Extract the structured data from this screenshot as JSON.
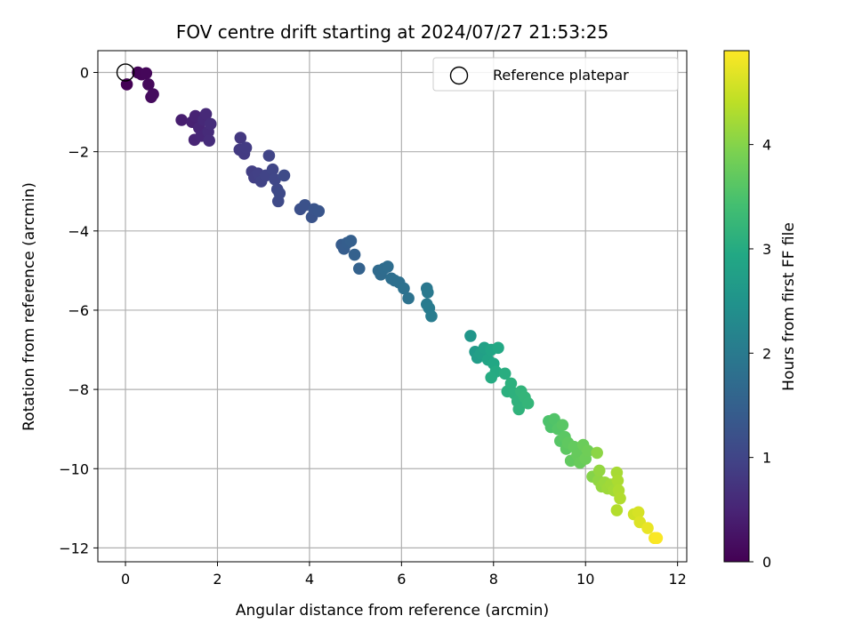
{
  "chart_data": {
    "type": "scatter",
    "title": "FOV centre drift starting at 2024/07/27 21:53:25",
    "xlabel": "Angular distance from reference (arcmin)",
    "ylabel": "Rotation from reference (arcmin)",
    "xlim": [
      -0.6,
      12.2
    ],
    "ylim": [
      -12.35,
      0.55
    ],
    "xticks": [
      0,
      2,
      4,
      6,
      8,
      10,
      12
    ],
    "yticks": [
      0,
      -2,
      -4,
      -6,
      -8,
      -10,
      -12
    ],
    "xtick_labels": [
      "0",
      "2",
      "4",
      "6",
      "8",
      "10",
      "12"
    ],
    "ytick_labels": [
      "0",
      "−2",
      "−4",
      "−6",
      "−8",
      "−10",
      "−12"
    ],
    "grid": true,
    "colormap": "viridis",
    "colorbar": {
      "label": "Hours from first FF file",
      "range": [
        0,
        4.9
      ],
      "ticks": [
        0,
        1,
        2,
        3,
        4
      ],
      "tick_labels": [
        "0",
        "1",
        "2",
        "3",
        "4"
      ]
    },
    "legend": {
      "placement": "top-right",
      "entries": [
        "Reference platepar"
      ]
    },
    "reference_point": {
      "x": 0,
      "y": 0
    },
    "points": [
      {
        "x": 0.03,
        "y": -0.3,
        "t": 0.02
      },
      {
        "x": 0.27,
        "y": 0.0,
        "t": 0.05
      },
      {
        "x": 0.35,
        "y": -0.05,
        "t": 0.07
      },
      {
        "x": 0.45,
        "y": -0.02,
        "t": 0.09
      },
      {
        "x": 0.5,
        "y": -0.3,
        "t": 0.11
      },
      {
        "x": 0.56,
        "y": -0.62,
        "t": 0.13
      },
      {
        "x": 0.6,
        "y": -0.55,
        "t": 0.15
      },
      {
        "x": 1.22,
        "y": -1.2,
        "t": 0.4
      },
      {
        "x": 1.45,
        "y": -1.25,
        "t": 0.45
      },
      {
        "x": 1.52,
        "y": -1.1,
        "t": 0.48
      },
      {
        "x": 1.5,
        "y": -1.7,
        "t": 0.5
      },
      {
        "x": 1.6,
        "y": -1.4,
        "t": 0.52
      },
      {
        "x": 1.65,
        "y": -1.6,
        "t": 0.54
      },
      {
        "x": 1.7,
        "y": -1.2,
        "t": 0.56
      },
      {
        "x": 1.75,
        "y": -1.05,
        "t": 0.58
      },
      {
        "x": 1.8,
        "y": -1.5,
        "t": 0.6
      },
      {
        "x": 1.82,
        "y": -1.72,
        "t": 0.62
      },
      {
        "x": 1.85,
        "y": -1.3,
        "t": 0.63
      },
      {
        "x": 2.5,
        "y": -1.65,
        "t": 0.8
      },
      {
        "x": 2.48,
        "y": -1.95,
        "t": 0.82
      },
      {
        "x": 2.58,
        "y": -2.05,
        "t": 0.84
      },
      {
        "x": 2.62,
        "y": -1.9,
        "t": 0.86
      },
      {
        "x": 2.75,
        "y": -2.5,
        "t": 0.9
      },
      {
        "x": 2.8,
        "y": -2.65,
        "t": 0.92
      },
      {
        "x": 2.88,
        "y": -2.55,
        "t": 0.94
      },
      {
        "x": 2.95,
        "y": -2.75,
        "t": 0.96
      },
      {
        "x": 3.05,
        "y": -2.6,
        "t": 0.98
      },
      {
        "x": 3.12,
        "y": -2.1,
        "t": 1.0
      },
      {
        "x": 3.2,
        "y": -2.45,
        "t": 1.02
      },
      {
        "x": 3.25,
        "y": -2.7,
        "t": 1.04
      },
      {
        "x": 3.3,
        "y": -2.95,
        "t": 1.06
      },
      {
        "x": 3.32,
        "y": -3.25,
        "t": 1.08
      },
      {
        "x": 3.35,
        "y": -3.05,
        "t": 1.09
      },
      {
        "x": 3.45,
        "y": -2.6,
        "t": 1.1
      },
      {
        "x": 3.8,
        "y": -3.45,
        "t": 1.2
      },
      {
        "x": 3.9,
        "y": -3.35,
        "t": 1.22
      },
      {
        "x": 4.05,
        "y": -3.65,
        "t": 1.25
      },
      {
        "x": 4.1,
        "y": -3.45,
        "t": 1.27
      },
      {
        "x": 4.2,
        "y": -3.5,
        "t": 1.29
      },
      {
        "x": 4.7,
        "y": -4.35,
        "t": 1.42
      },
      {
        "x": 4.75,
        "y": -4.45,
        "t": 1.44
      },
      {
        "x": 4.82,
        "y": -4.3,
        "t": 1.46
      },
      {
        "x": 4.9,
        "y": -4.25,
        "t": 1.48
      },
      {
        "x": 4.98,
        "y": -4.6,
        "t": 1.5
      },
      {
        "x": 5.08,
        "y": -4.95,
        "t": 1.53
      },
      {
        "x": 5.5,
        "y": -5.0,
        "t": 1.68
      },
      {
        "x": 5.55,
        "y": -5.1,
        "t": 1.7
      },
      {
        "x": 5.62,
        "y": -4.95,
        "t": 1.72
      },
      {
        "x": 5.7,
        "y": -4.9,
        "t": 1.74
      },
      {
        "x": 5.78,
        "y": -5.2,
        "t": 1.76
      },
      {
        "x": 5.85,
        "y": -5.25,
        "t": 1.78
      },
      {
        "x": 5.95,
        "y": -5.3,
        "t": 1.8
      },
      {
        "x": 6.05,
        "y": -5.45,
        "t": 1.82
      },
      {
        "x": 6.15,
        "y": -5.7,
        "t": 1.84
      },
      {
        "x": 6.55,
        "y": -5.45,
        "t": 1.95
      },
      {
        "x": 6.57,
        "y": -5.55,
        "t": 1.97
      },
      {
        "x": 6.55,
        "y": -5.85,
        "t": 1.99
      },
      {
        "x": 6.6,
        "y": -5.95,
        "t": 2.01
      },
      {
        "x": 6.65,
        "y": -6.15,
        "t": 2.03
      },
      {
        "x": 7.5,
        "y": -6.65,
        "t": 2.55
      },
      {
        "x": 7.6,
        "y": -7.05,
        "t": 2.65
      },
      {
        "x": 7.65,
        "y": -7.2,
        "t": 2.7
      },
      {
        "x": 7.72,
        "y": -7.1,
        "t": 2.75
      },
      {
        "x": 7.8,
        "y": -6.95,
        "t": 2.8
      },
      {
        "x": 7.88,
        "y": -7.25,
        "t": 2.85
      },
      {
        "x": 7.95,
        "y": -7.0,
        "t": 2.88
      },
      {
        "x": 8.0,
        "y": -7.35,
        "t": 2.92
      },
      {
        "x": 8.1,
        "y": -6.95,
        "t": 2.95
      },
      {
        "x": 8.05,
        "y": -7.55,
        "t": 2.98
      },
      {
        "x": 7.95,
        "y": -7.7,
        "t": 3.0
      },
      {
        "x": 8.25,
        "y": -7.6,
        "t": 3.05
      },
      {
        "x": 8.3,
        "y": -8.05,
        "t": 3.08
      },
      {
        "x": 8.38,
        "y": -7.85,
        "t": 3.1
      },
      {
        "x": 8.45,
        "y": -8.1,
        "t": 3.12
      },
      {
        "x": 8.52,
        "y": -8.3,
        "t": 3.14
      },
      {
        "x": 8.55,
        "y": -8.5,
        "t": 3.16
      },
      {
        "x": 8.6,
        "y": -8.05,
        "t": 3.18
      },
      {
        "x": 8.68,
        "y": -8.2,
        "t": 3.2
      },
      {
        "x": 8.75,
        "y": -8.35,
        "t": 3.22
      },
      {
        "x": 9.2,
        "y": -8.8,
        "t": 3.5
      },
      {
        "x": 9.25,
        "y": -8.95,
        "t": 3.52
      },
      {
        "x": 9.32,
        "y": -8.75,
        "t": 3.55
      },
      {
        "x": 9.4,
        "y": -9.0,
        "t": 3.58
      },
      {
        "x": 9.45,
        "y": -9.3,
        "t": 3.6
      },
      {
        "x": 9.5,
        "y": -8.9,
        "t": 3.62
      },
      {
        "x": 9.55,
        "y": -9.2,
        "t": 3.64
      },
      {
        "x": 9.58,
        "y": -9.5,
        "t": 3.66
      },
      {
        "x": 9.62,
        "y": -9.35,
        "t": 3.68
      },
      {
        "x": 9.68,
        "y": -9.8,
        "t": 3.7
      },
      {
        "x": 9.75,
        "y": -9.45,
        "t": 3.72
      },
      {
        "x": 9.82,
        "y": -9.65,
        "t": 3.74
      },
      {
        "x": 9.88,
        "y": -9.85,
        "t": 3.76
      },
      {
        "x": 9.95,
        "y": -9.4,
        "t": 3.78
      },
      {
        "x": 10.0,
        "y": -9.75,
        "t": 3.8
      },
      {
        "x": 10.05,
        "y": -9.55,
        "t": 3.82
      },
      {
        "x": 10.15,
        "y": -10.2,
        "t": 4.0
      },
      {
        "x": 10.25,
        "y": -9.6,
        "t": 4.05
      },
      {
        "x": 10.28,
        "y": -10.3,
        "t": 4.08
      },
      {
        "x": 10.3,
        "y": -10.05,
        "t": 4.1
      },
      {
        "x": 10.35,
        "y": -10.45,
        "t": 4.12
      },
      {
        "x": 10.42,
        "y": -10.35,
        "t": 4.15
      },
      {
        "x": 10.48,
        "y": -10.5,
        "t": 4.18
      },
      {
        "x": 10.55,
        "y": -10.4,
        "t": 4.2
      },
      {
        "x": 10.62,
        "y": -10.55,
        "t": 4.22
      },
      {
        "x": 10.68,
        "y": -10.1,
        "t": 4.25
      },
      {
        "x": 10.7,
        "y": -10.3,
        "t": 4.28
      },
      {
        "x": 10.72,
        "y": -10.55,
        "t": 4.3
      },
      {
        "x": 10.75,
        "y": -10.75,
        "t": 4.32
      },
      {
        "x": 10.68,
        "y": -11.05,
        "t": 4.34
      },
      {
        "x": 11.05,
        "y": -11.15,
        "t": 4.55
      },
      {
        "x": 11.15,
        "y": -11.1,
        "t": 4.6
      },
      {
        "x": 11.18,
        "y": -11.35,
        "t": 4.65
      },
      {
        "x": 11.35,
        "y": -11.5,
        "t": 4.75
      },
      {
        "x": 11.5,
        "y": -11.75,
        "t": 4.85
      },
      {
        "x": 11.55,
        "y": -11.75,
        "t": 4.88
      }
    ]
  }
}
